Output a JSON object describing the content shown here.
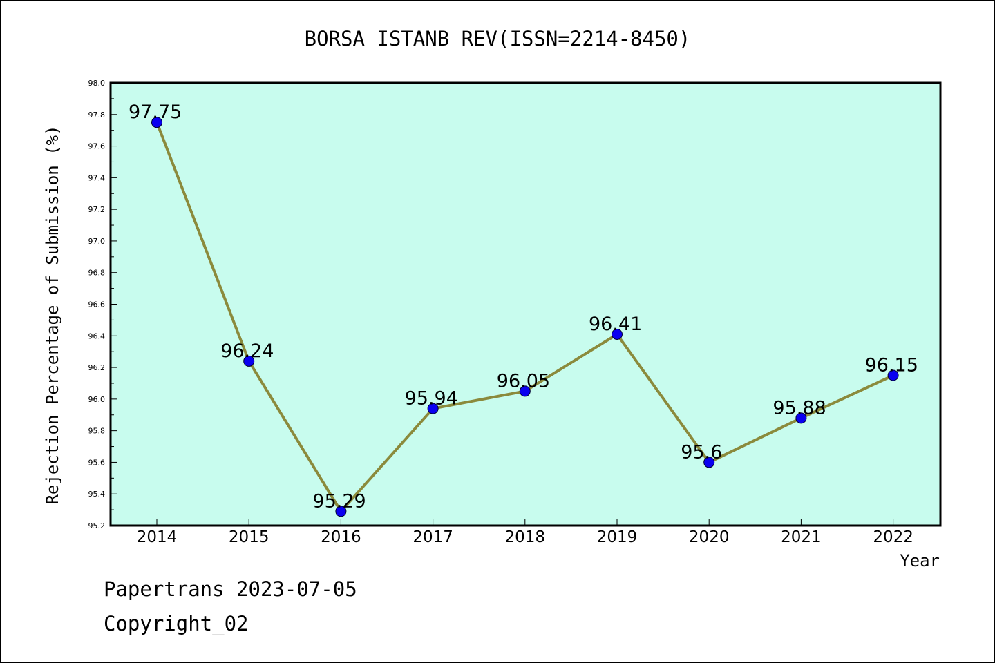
{
  "chart_data": {
    "type": "line",
    "title": "BORSA ISTANB REV(ISSN=2214-8450)",
    "xlabel": "Year",
    "ylabel": "Rejection Percentage of Submission (%)",
    "categories": [
      "2014",
      "2015",
      "2016",
      "2017",
      "2018",
      "2019",
      "2020",
      "2021",
      "2022"
    ],
    "values": [
      97.75,
      96.24,
      95.29,
      95.94,
      96.05,
      96.41,
      95.6,
      95.88,
      96.15
    ],
    "data_labels": [
      "97.75",
      "96.24",
      "95.29",
      "95.94",
      "96.05",
      "96.41",
      "95.6",
      "95.88",
      "96.15"
    ],
    "ylim": [
      95.2,
      98.0
    ],
    "yticks": [
      "95.2",
      "95.4",
      "95.6",
      "95.8",
      "96.0",
      "96.2",
      "96.4",
      "96.6",
      "96.8",
      "97.0",
      "97.2",
      "97.4",
      "97.6",
      "97.8",
      "98.0"
    ],
    "grid": false,
    "legend": "none",
    "colors": {
      "plot_background": "#c8fcee",
      "line": "#8b8a3c",
      "marker": "#0a00f0"
    }
  },
  "footer": {
    "line1": "Papertrans 2023-07-05",
    "line2": "Copyright_02"
  }
}
